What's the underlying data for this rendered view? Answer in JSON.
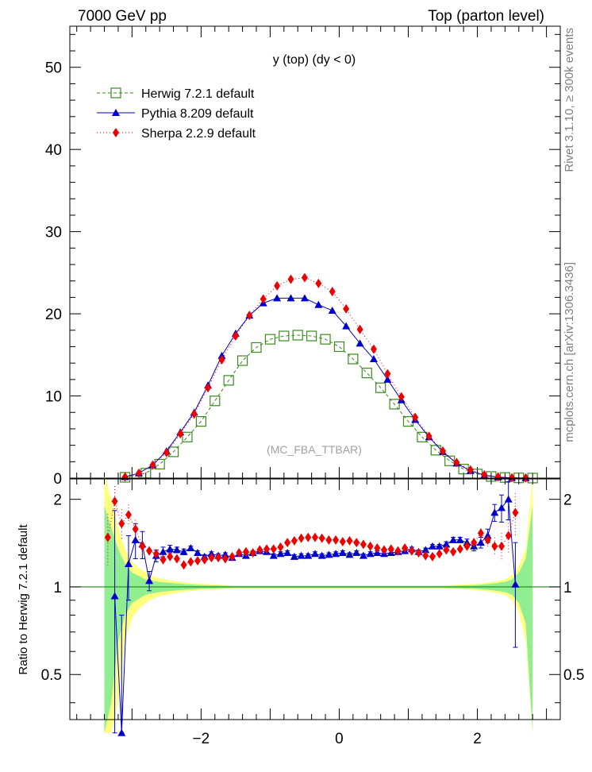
{
  "header": {
    "left": "7000 GeV pp",
    "right": "Top (parton level)"
  },
  "side_labels": {
    "rivet": "Rivet 3.1.10, ≥ 300k events",
    "mcplots": "mcplots.cern.ch [arXiv:1306.3436]"
  },
  "chart_data": [
    {
      "type": "line",
      "panel": "main",
      "title": "y (top) (dy < 0)",
      "watermark": "(MC_FBA_TTBAR)",
      "xlabel": "",
      "ylabel": "",
      "xlim": [
        -3.9,
        3.2
      ],
      "ylim": [
        0,
        55
      ],
      "yticks": [
        0,
        10,
        20,
        30,
        40,
        50
      ],
      "legend_position": "top-left",
      "series": [
        {
          "name": "Herwig 7.2.1 default",
          "color": "#3a8a1c",
          "marker": "open-square",
          "x": [
            -3.1,
            -2.8,
            -2.6,
            -2.4,
            -2.2,
            -2.0,
            -1.8,
            -1.6,
            -1.4,
            -1.2,
            -1.0,
            -0.8,
            -0.6,
            -0.4,
            -0.2,
            0.0,
            0.2,
            0.4,
            0.6,
            0.8,
            1.0,
            1.2,
            1.4,
            1.6,
            1.8,
            2.0,
            2.2,
            2.4,
            2.6,
            2.8
          ],
          "y": [
            0.1,
            0.6,
            1.7,
            3.2,
            5.0,
            6.9,
            9.4,
            11.9,
            14.3,
            15.9,
            16.9,
            17.3,
            17.4,
            17.3,
            16.9,
            16.0,
            14.5,
            12.8,
            11.0,
            9.0,
            6.9,
            5.0,
            3.4,
            2.1,
            1.1,
            0.5,
            0.2,
            0.08,
            0.03,
            0.01
          ]
        },
        {
          "name": "Pythia 8.209 default",
          "color": "#0000cc",
          "marker": "filled-triangle",
          "x": [
            -3.1,
            -2.9,
            -2.7,
            -2.5,
            -2.3,
            -2.1,
            -1.9,
            -1.7,
            -1.5,
            -1.3,
            -1.1,
            -0.9,
            -0.7,
            -0.5,
            -0.3,
            -0.1,
            0.1,
            0.3,
            0.5,
            0.7,
            0.9,
            1.1,
            1.3,
            1.5,
            1.7,
            1.9,
            2.1,
            2.3,
            2.5,
            2.7
          ],
          "y": [
            0.15,
            0.6,
            1.6,
            3.3,
            5.6,
            8.0,
            11.3,
            14.9,
            17.6,
            19.8,
            21.3,
            21.9,
            21.9,
            21.9,
            21.1,
            20.4,
            18.5,
            16.4,
            14.5,
            12.0,
            9.5,
            7.1,
            5.0,
            3.2,
            1.8,
            0.9,
            0.35,
            0.12,
            0.04,
            0.01
          ]
        },
        {
          "name": "Sherpa 2.2.9 default",
          "color": "#ee0000",
          "marker": "filled-diamond",
          "x": [
            -3.1,
            -2.9,
            -2.7,
            -2.5,
            -2.3,
            -2.1,
            -1.9,
            -1.7,
            -1.5,
            -1.3,
            -1.1,
            -0.9,
            -0.7,
            -0.5,
            -0.3,
            -0.1,
            0.1,
            0.3,
            0.5,
            0.7,
            0.9,
            1.1,
            1.3,
            1.5,
            1.7,
            1.9,
            2.1,
            2.3,
            2.5,
            2.7
          ],
          "y": [
            0.15,
            0.6,
            1.6,
            3.1,
            5.4,
            7.8,
            11.0,
            14.4,
            17.3,
            19.8,
            21.8,
            23.4,
            24.2,
            24.4,
            23.7,
            22.7,
            20.6,
            18.1,
            15.7,
            12.7,
            9.9,
            7.4,
            5.1,
            3.3,
            1.9,
            1.0,
            0.4,
            0.15,
            0.05,
            0.02
          ]
        }
      ]
    },
    {
      "type": "line",
      "panel": "ratio",
      "ylabel": "Ratio to Herwig 7.2.1 default",
      "xlim": [
        -3.9,
        3.2
      ],
      "ylim": [
        0.35,
        2.35
      ],
      "yticks": [
        0.5,
        1,
        2
      ],
      "xticks": [
        -2,
        0,
        2
      ],
      "band_x": [
        -3.4,
        -3.3,
        -3.2,
        -3.1,
        -3.0,
        -2.9,
        -2.8,
        -2.7,
        -2.6,
        -2.4,
        -2.2,
        -2.0,
        -1.5,
        1.5,
        2.0,
        2.2,
        2.4,
        2.5,
        2.6,
        2.7,
        2.8
      ],
      "band_yellow_halfwidth": [
        1.4,
        1.0,
        0.6,
        0.35,
        0.22,
        0.16,
        0.12,
        0.09,
        0.07,
        0.05,
        0.035,
        0.025,
        0.012,
        0.012,
        0.025,
        0.04,
        0.06,
        0.1,
        0.18,
        0.35,
        1.4
      ],
      "band_green_halfwidth": [
        0.9,
        0.6,
        0.35,
        0.2,
        0.12,
        0.09,
        0.06,
        0.05,
        0.04,
        0.03,
        0.02,
        0.015,
        0.008,
        0.008,
        0.015,
        0.025,
        0.04,
        0.06,
        0.12,
        0.25,
        0.9
      ],
      "series": [
        {
          "name": "Pythia 8.209 default",
          "color": "#0000cc",
          "marker": "filled-triangle",
          "x": [
            -3.25,
            -3.15,
            -3.05,
            -2.95,
            -2.85,
            -2.75,
            -2.65,
            -2.55,
            -2.45,
            -2.35,
            -2.25,
            -2.15,
            -2.05,
            -1.95,
            -1.85,
            -1.75,
            -1.65,
            -1.55,
            -1.45,
            -1.35,
            -1.25,
            -1.15,
            -1.05,
            -0.95,
            -0.85,
            -0.75,
            -0.65,
            -0.55,
            -0.45,
            -0.35,
            -0.25,
            -0.15,
            -0.05,
            0.05,
            0.15,
            0.25,
            0.35,
            0.45,
            0.55,
            0.65,
            0.75,
            0.85,
            0.95,
            1.05,
            1.15,
            1.25,
            1.35,
            1.45,
            1.55,
            1.65,
            1.75,
            1.85,
            1.95,
            2.05,
            2.15,
            2.25,
            2.35,
            2.45,
            2.55
          ],
          "y": [
            0.93,
            0.3,
            1.2,
            1.45,
            1.4,
            1.05,
            1.28,
            1.32,
            1.35,
            1.34,
            1.32,
            1.36,
            1.31,
            1.27,
            1.3,
            1.28,
            1.29,
            1.26,
            1.3,
            1.28,
            1.31,
            1.33,
            1.32,
            1.28,
            1.3,
            1.31,
            1.27,
            1.28,
            1.28,
            1.3,
            1.28,
            1.29,
            1.3,
            1.31,
            1.29,
            1.31,
            1.28,
            1.3,
            1.31,
            1.3,
            1.31,
            1.32,
            1.33,
            1.35,
            1.32,
            1.34,
            1.38,
            1.38,
            1.4,
            1.45,
            1.45,
            1.42,
            1.38,
            1.42,
            1.5,
            1.8,
            1.87,
            2.0,
            1.02
          ],
          "yerr": [
            0.9,
            0.5,
            0.3,
            0.2,
            0.15,
            0.08,
            0.06,
            0.05,
            0.04,
            0.03,
            0.03,
            0.02,
            0.02,
            0.02,
            0.02,
            0.02,
            0.02,
            0.02,
            0.02,
            0.02,
            0.02,
            0.02,
            0.02,
            0.02,
            0.02,
            0.02,
            0.02,
            0.02,
            0.02,
            0.02,
            0.02,
            0.02,
            0.02,
            0.02,
            0.02,
            0.02,
            0.02,
            0.02,
            0.02,
            0.02,
            0.02,
            0.02,
            0.02,
            0.02,
            0.02,
            0.02,
            0.02,
            0.02,
            0.03,
            0.03,
            0.03,
            0.04,
            0.05,
            0.06,
            0.08,
            0.12,
            0.2,
            0.3,
            0.4
          ]
        },
        {
          "name": "Sherpa 2.2.9 default",
          "color": "#ee0000",
          "marker": "filled-diamond",
          "x": [
            -3.35,
            -3.25,
            -3.15,
            -3.05,
            -2.95,
            -2.85,
            -2.75,
            -2.65,
            -2.55,
            -2.45,
            -2.35,
            -2.25,
            -2.15,
            -2.05,
            -1.95,
            -1.85,
            -1.75,
            -1.65,
            -1.55,
            -1.45,
            -1.35,
            -1.25,
            -1.15,
            -1.05,
            -0.95,
            -0.85,
            -0.75,
            -0.65,
            -0.55,
            -0.45,
            -0.35,
            -0.25,
            -0.15,
            -0.05,
            0.05,
            0.15,
            0.25,
            0.35,
            0.45,
            0.55,
            0.65,
            0.75,
            0.85,
            0.95,
            1.05,
            1.15,
            1.25,
            1.35,
            1.45,
            1.55,
            1.65,
            1.75,
            1.85,
            1.95,
            2.05,
            2.15,
            2.25,
            2.35,
            2.45,
            2.55
          ],
          "y": [
            1.48,
            1.97,
            1.65,
            1.77,
            1.58,
            1.38,
            1.33,
            1.3,
            1.24,
            1.27,
            1.25,
            1.19,
            1.22,
            1.23,
            1.24,
            1.26,
            1.26,
            1.25,
            1.27,
            1.31,
            1.32,
            1.31,
            1.34,
            1.35,
            1.35,
            1.37,
            1.42,
            1.44,
            1.47,
            1.48,
            1.48,
            1.47,
            1.45,
            1.45,
            1.43,
            1.44,
            1.42,
            1.4,
            1.38,
            1.36,
            1.34,
            1.35,
            1.33,
            1.36,
            1.33,
            1.31,
            1.28,
            1.27,
            1.3,
            1.34,
            1.32,
            1.35,
            1.38,
            1.42,
            1.53,
            1.45,
            1.38,
            1.38,
            1.5,
            1.8
          ],
          "yerr": [
            0.3,
            0.25,
            0.2,
            0.15,
            0.12,
            0.08,
            0.05,
            0.04,
            0.03,
            0.03,
            0.03,
            0.02,
            0.02,
            0.02,
            0.02,
            0.02,
            0.02,
            0.02,
            0.02,
            0.02,
            0.02,
            0.02,
            0.02,
            0.02,
            0.02,
            0.02,
            0.02,
            0.02,
            0.02,
            0.02,
            0.02,
            0.02,
            0.02,
            0.02,
            0.02,
            0.02,
            0.02,
            0.02,
            0.02,
            0.02,
            0.02,
            0.02,
            0.02,
            0.02,
            0.02,
            0.02,
            0.02,
            0.02,
            0.02,
            0.02,
            0.03,
            0.03,
            0.04,
            0.05,
            0.06,
            0.08,
            0.1,
            0.15,
            0.2,
            0.3
          ]
        }
      ]
    }
  ]
}
